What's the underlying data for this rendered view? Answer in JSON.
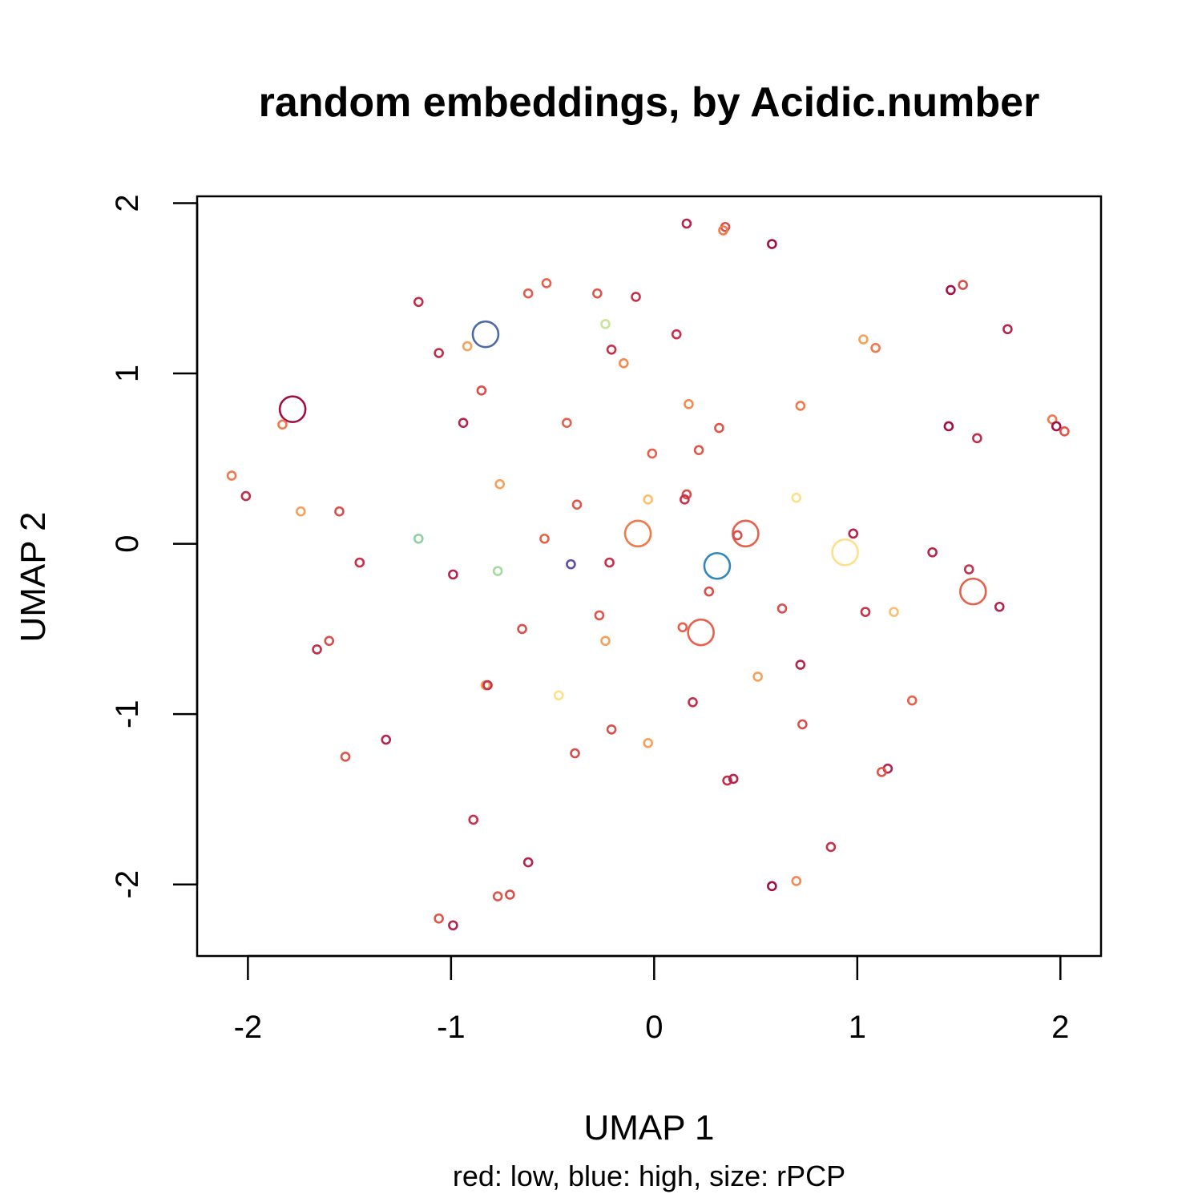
{
  "chart_data": {
    "type": "scatter",
    "title": "random embeddings, by Acidic.number",
    "xlabel": "UMAP 1",
    "ylabel": "UMAP 2",
    "subtitle": "red: low, blue: high, size: rPCP",
    "xlim": [
      -2.25,
      2.2
    ],
    "ylim": [
      -2.42,
      2.04
    ],
    "xticks": [
      -2,
      -1,
      0,
      1,
      2
    ],
    "yticks": [
      -2,
      -1,
      0,
      1,
      2
    ],
    "xtick_labels": [
      "-2",
      "-1",
      "0",
      "1",
      "2"
    ],
    "ytick_labels": [
      "-2",
      "-1",
      "0",
      "1",
      "2"
    ],
    "points": [
      {
        "x": 0.16,
        "y": 1.88,
        "color": "#b5244a",
        "size": 1
      },
      {
        "x": 0.35,
        "y": 1.86,
        "color": "#d94e4a",
        "size": 1
      },
      {
        "x": 0.34,
        "y": 1.84,
        "color": "#f07a4a",
        "size": 1
      },
      {
        "x": 0.58,
        "y": 1.76,
        "color": "#a10f45",
        "size": 1
      },
      {
        "x": -0.62,
        "y": 1.47,
        "color": "#e65a4a",
        "size": 1
      },
      {
        "x": -0.53,
        "y": 1.53,
        "color": "#e8604b",
        "size": 1
      },
      {
        "x": -0.28,
        "y": 1.47,
        "color": "#e05549",
        "size": 1
      },
      {
        "x": -0.09,
        "y": 1.45,
        "color": "#c8304a",
        "size": 1
      },
      {
        "x": -1.16,
        "y": 1.42,
        "color": "#c22d4a",
        "size": 1
      },
      {
        "x": 1.46,
        "y": 1.49,
        "color": "#a10f45",
        "size": 1
      },
      {
        "x": 1.52,
        "y": 1.52,
        "color": "#d94e4a",
        "size": 1
      },
      {
        "x": 1.74,
        "y": 1.26,
        "color": "#b5244a",
        "size": 1
      },
      {
        "x": -0.83,
        "y": 1.23,
        "color": "#4a6aa8",
        "size": 3
      },
      {
        "x": -0.24,
        "y": 1.29,
        "color": "#c8e59a",
        "size": 1
      },
      {
        "x": 0.11,
        "y": 1.23,
        "color": "#c8304a",
        "size": 1
      },
      {
        "x": -1.06,
        "y": 1.12,
        "color": "#c22d4a",
        "size": 1
      },
      {
        "x": -0.92,
        "y": 1.16,
        "color": "#f6a05a",
        "size": 1
      },
      {
        "x": -0.21,
        "y": 1.14,
        "color": "#c8304a",
        "size": 1
      },
      {
        "x": -0.15,
        "y": 1.06,
        "color": "#f38a50",
        "size": 1
      },
      {
        "x": 1.03,
        "y": 1.2,
        "color": "#f6a05a",
        "size": 1
      },
      {
        "x": 1.09,
        "y": 1.15,
        "color": "#f07a4a",
        "size": 1
      },
      {
        "x": -0.85,
        "y": 0.9,
        "color": "#d94e4a",
        "size": 1
      },
      {
        "x": -1.78,
        "y": 0.79,
        "color": "#a10f45",
        "size": 3
      },
      {
        "x": -1.83,
        "y": 0.7,
        "color": "#f07a4a",
        "size": 1
      },
      {
        "x": -0.94,
        "y": 0.71,
        "color": "#b5244a",
        "size": 1
      },
      {
        "x": -0.43,
        "y": 0.71,
        "color": "#e8604b",
        "size": 1
      },
      {
        "x": 0.17,
        "y": 0.82,
        "color": "#f38a50",
        "size": 1
      },
      {
        "x": 0.72,
        "y": 0.81,
        "color": "#f07a4a",
        "size": 1
      },
      {
        "x": 0.32,
        "y": 0.68,
        "color": "#e05549",
        "size": 1
      },
      {
        "x": 1.45,
        "y": 0.69,
        "color": "#a10f45",
        "size": 1
      },
      {
        "x": 1.59,
        "y": 0.62,
        "color": "#c22d4a",
        "size": 1
      },
      {
        "x": 1.96,
        "y": 0.73,
        "color": "#f07a4a",
        "size": 1
      },
      {
        "x": 1.98,
        "y": 0.69,
        "color": "#a10f45",
        "size": 1
      },
      {
        "x": 2.02,
        "y": 0.66,
        "color": "#e05549",
        "size": 1
      },
      {
        "x": -0.01,
        "y": 0.53,
        "color": "#e8604b",
        "size": 1
      },
      {
        "x": 0.22,
        "y": 0.55,
        "color": "#e05549",
        "size": 1
      },
      {
        "x": -2.08,
        "y": 0.4,
        "color": "#f07a4a",
        "size": 1
      },
      {
        "x": -2.01,
        "y": 0.28,
        "color": "#c22d4a",
        "size": 1
      },
      {
        "x": -0.76,
        "y": 0.35,
        "color": "#f6a05a",
        "size": 1
      },
      {
        "x": -0.38,
        "y": 0.23,
        "color": "#e05549",
        "size": 1
      },
      {
        "x": -0.03,
        "y": 0.26,
        "color": "#fdbf6f",
        "size": 1
      },
      {
        "x": 0.16,
        "y": 0.29,
        "color": "#d94e4a",
        "size": 1
      },
      {
        "x": 0.15,
        "y": 0.26,
        "color": "#c8304a",
        "size": 1
      },
      {
        "x": 0.7,
        "y": 0.27,
        "color": "#fee08b",
        "size": 1
      },
      {
        "x": -1.74,
        "y": 0.19,
        "color": "#f6a05a",
        "size": 1
      },
      {
        "x": -1.55,
        "y": 0.19,
        "color": "#d94e4a",
        "size": 1
      },
      {
        "x": -1.16,
        "y": 0.03,
        "color": "#8fd19e",
        "size": 1
      },
      {
        "x": -0.54,
        "y": 0.03,
        "color": "#e8604b",
        "size": 1
      },
      {
        "x": -0.08,
        "y": 0.06,
        "color": "#f07a4a",
        "size": 3
      },
      {
        "x": 0.45,
        "y": 0.06,
        "color": "#e8604b",
        "size": 3
      },
      {
        "x": 0.41,
        "y": 0.05,
        "color": "#d94e4a",
        "size": 1
      },
      {
        "x": 0.98,
        "y": 0.06,
        "color": "#b5244a",
        "size": 1
      },
      {
        "x": 0.94,
        "y": -0.05,
        "color": "#fee08b",
        "size": 3
      },
      {
        "x": 1.37,
        "y": -0.05,
        "color": "#b5244a",
        "size": 1
      },
      {
        "x": -1.45,
        "y": -0.11,
        "color": "#c8304a",
        "size": 1
      },
      {
        "x": -0.99,
        "y": -0.18,
        "color": "#b5244a",
        "size": 1
      },
      {
        "x": -0.77,
        "y": -0.16,
        "color": "#a6dba0",
        "size": 1
      },
      {
        "x": -0.41,
        "y": -0.12,
        "color": "#5e4fa2",
        "size": 1
      },
      {
        "x": -0.22,
        "y": -0.11,
        "color": "#c8304a",
        "size": 1
      },
      {
        "x": 0.31,
        "y": -0.13,
        "color": "#3288bd",
        "size": 3
      },
      {
        "x": 1.55,
        "y": -0.15,
        "color": "#c8304a",
        "size": 1
      },
      {
        "x": 1.57,
        "y": -0.28,
        "color": "#e8604b",
        "size": 3
      },
      {
        "x": 0.27,
        "y": -0.28,
        "color": "#d94e4a",
        "size": 1
      },
      {
        "x": 1.7,
        "y": -0.37,
        "color": "#b5244a",
        "size": 1
      },
      {
        "x": 0.63,
        "y": -0.38,
        "color": "#d94e4a",
        "size": 1
      },
      {
        "x": 1.04,
        "y": -0.4,
        "color": "#c8304a",
        "size": 1
      },
      {
        "x": 1.18,
        "y": -0.4,
        "color": "#fdbf6f",
        "size": 1
      },
      {
        "x": -0.27,
        "y": -0.42,
        "color": "#e05549",
        "size": 1
      },
      {
        "x": -0.65,
        "y": -0.5,
        "color": "#d94e4a",
        "size": 1
      },
      {
        "x": 0.14,
        "y": -0.49,
        "color": "#e8604b",
        "size": 1
      },
      {
        "x": 0.23,
        "y": -0.52,
        "color": "#e8604b",
        "size": 3
      },
      {
        "x": -0.24,
        "y": -0.57,
        "color": "#f6a05a",
        "size": 1
      },
      {
        "x": -1.6,
        "y": -0.57,
        "color": "#d94e4a",
        "size": 1
      },
      {
        "x": -1.66,
        "y": -0.62,
        "color": "#c22d4a",
        "size": 1
      },
      {
        "x": 0.72,
        "y": -0.71,
        "color": "#b5244a",
        "size": 1
      },
      {
        "x": 0.51,
        "y": -0.78,
        "color": "#f6a05a",
        "size": 1
      },
      {
        "x": -0.83,
        "y": -0.83,
        "color": "#f6a05a",
        "size": 1
      },
      {
        "x": -0.82,
        "y": -0.83,
        "color": "#c8304a",
        "size": 1
      },
      {
        "x": -0.47,
        "y": -0.89,
        "color": "#fee08b",
        "size": 1
      },
      {
        "x": 0.19,
        "y": -0.93,
        "color": "#c22d4a",
        "size": 1
      },
      {
        "x": 1.27,
        "y": -0.92,
        "color": "#e8604b",
        "size": 1
      },
      {
        "x": 0.73,
        "y": -1.06,
        "color": "#d94e4a",
        "size": 1
      },
      {
        "x": -0.21,
        "y": -1.09,
        "color": "#d94e4a",
        "size": 1
      },
      {
        "x": -0.03,
        "y": -1.17,
        "color": "#f6a05a",
        "size": 1
      },
      {
        "x": -1.32,
        "y": -1.15,
        "color": "#b5244a",
        "size": 1
      },
      {
        "x": -1.52,
        "y": -1.25,
        "color": "#e05549",
        "size": 1
      },
      {
        "x": -0.39,
        "y": -1.23,
        "color": "#d94e4a",
        "size": 1
      },
      {
        "x": 1.15,
        "y": -1.32,
        "color": "#b5244a",
        "size": 1
      },
      {
        "x": 1.12,
        "y": -1.34,
        "color": "#e05549",
        "size": 1
      },
      {
        "x": 0.36,
        "y": -1.39,
        "color": "#c8304a",
        "size": 1
      },
      {
        "x": 0.39,
        "y": -1.38,
        "color": "#b5244a",
        "size": 1
      },
      {
        "x": -0.89,
        "y": -1.62,
        "color": "#c8304a",
        "size": 1
      },
      {
        "x": 0.87,
        "y": -1.78,
        "color": "#c8304a",
        "size": 1
      },
      {
        "x": -0.62,
        "y": -1.87,
        "color": "#b5244a",
        "size": 1
      },
      {
        "x": 0.7,
        "y": -1.98,
        "color": "#f38a50",
        "size": 1
      },
      {
        "x": 0.58,
        "y": -2.01,
        "color": "#a10f45",
        "size": 1
      },
      {
        "x": -0.77,
        "y": -2.07,
        "color": "#e05549",
        "size": 1
      },
      {
        "x": -0.71,
        "y": -2.06,
        "color": "#d94e4a",
        "size": 1
      },
      {
        "x": -1.06,
        "y": -2.2,
        "color": "#e05549",
        "size": 1
      },
      {
        "x": -0.99,
        "y": -2.24,
        "color": "#b5244a",
        "size": 1
      }
    ]
  }
}
